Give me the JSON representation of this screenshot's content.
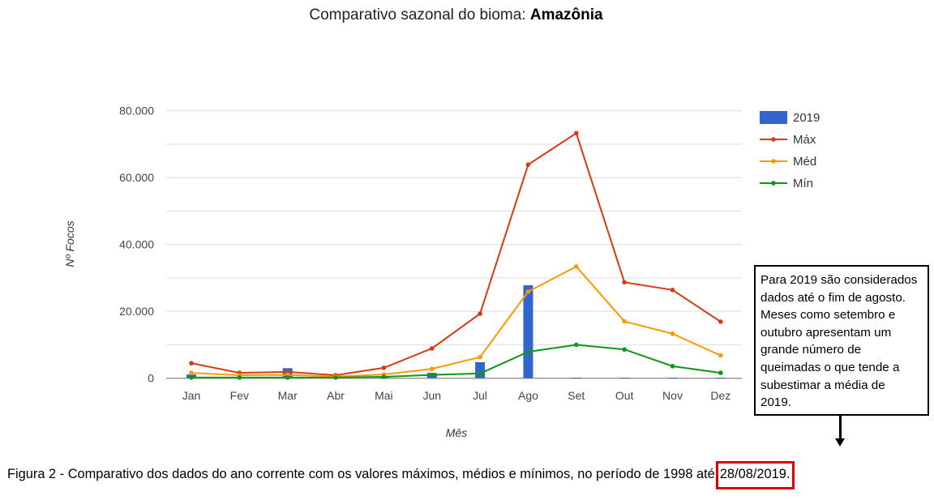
{
  "chart_data": {
    "type": "bar+line",
    "title_prefix": "Comparativo sazonal do bioma: ",
    "title_bold": "Amazônia",
    "xlabel": "Mês",
    "ylabel": "Nº Focos",
    "ylim": [
      0,
      80000
    ],
    "yticks": [
      0,
      20000,
      40000,
      60000,
      80000
    ],
    "ytick_labels": [
      "0",
      "20.000",
      "40.000",
      "60.000",
      "80.000"
    ],
    "grid": true,
    "legend_position": "right",
    "categories": [
      "Jan",
      "Fev",
      "Mar",
      "Abr",
      "Mai",
      "Jun",
      "Jul",
      "Ago",
      "Set",
      "Out",
      "Nov",
      "Dez"
    ],
    "series": [
      {
        "name": "2019",
        "kind": "bar",
        "color": "#3366cc",
        "values": [
          1100,
          300,
          3000,
          300,
          300,
          1600,
          4800,
          27800,
          0,
          0,
          0,
          0
        ]
      },
      {
        "name": "Máx",
        "kind": "line",
        "color": "#dc3912",
        "values": [
          4500,
          1600,
          1900,
          900,
          3100,
          8900,
          19300,
          63900,
          73300,
          28700,
          26400,
          16900
        ]
      },
      {
        "name": "Méd",
        "kind": "line",
        "color": "#ff9900",
        "values": [
          1600,
          900,
          1000,
          500,
          1100,
          2800,
          6300,
          25900,
          33400,
          17000,
          13300,
          6800
        ]
      },
      {
        "name": "Mín",
        "kind": "line",
        "color": "#109618",
        "values": [
          200,
          200,
          200,
          200,
          400,
          1000,
          1400,
          7900,
          10000,
          8600,
          3600,
          1600
        ]
      }
    ]
  },
  "annotation": {
    "lines": [
      "Para 2019 são considerados",
      "dados até o fim de agosto.",
      "Meses como setembro e",
      "outubro apresentam um",
      "grande número de",
      "queimadas o que tende a",
      "subestimar a média de",
      "2019."
    ]
  },
  "caption": {
    "text": "Figura 2 - Comparativo dos dados do ano corrente com os valores máximos, médios e mínimos, no período de 1998 até",
    "highlighted_date": "28/08/2019."
  }
}
